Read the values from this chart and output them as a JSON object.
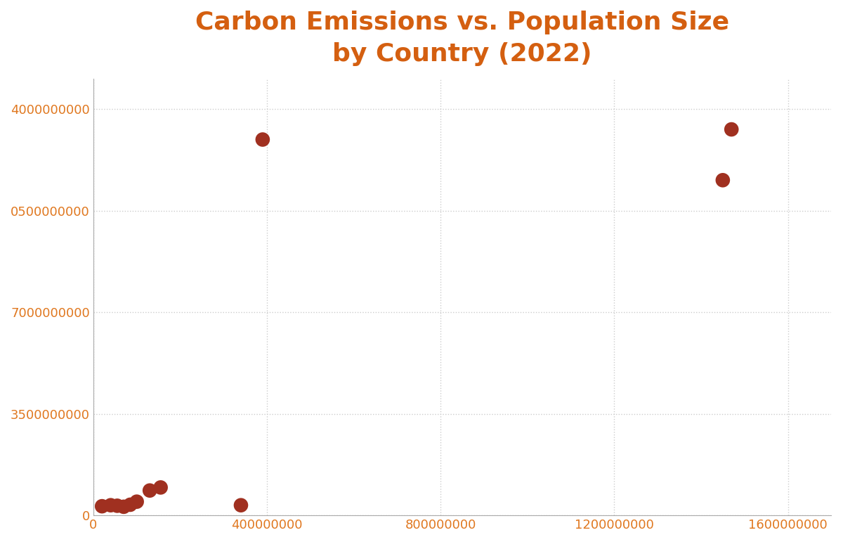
{
  "title": "Carbon Emissions vs. Population Size\nby Country (2022)",
  "title_color": "#d45f10",
  "title_fontsize": 26,
  "title_fontweight": "bold",
  "background_color": "#ffffff",
  "scatter_color": "#a03020",
  "scatter_size": 220,
  "points": [
    [
      20000000,
      90000000
    ],
    [
      40000000,
      100000000
    ],
    [
      55000000,
      95000000
    ],
    [
      70000000,
      85000000
    ],
    [
      85000000,
      105000000
    ],
    [
      100000000,
      135000000
    ],
    [
      130000000,
      245000000
    ],
    [
      155000000,
      275000000
    ],
    [
      340000000,
      100000000
    ],
    [
      390000000,
      3700000000
    ],
    [
      1450000000,
      3300000000
    ],
    [
      1470000000,
      3800000000
    ]
  ],
  "xlim": [
    0,
    1700000000
  ],
  "ylim": [
    0,
    4300000000
  ],
  "xtick_positions": [
    0,
    400000000,
    800000000,
    1200000000,
    1600000000
  ],
  "xtick_labels": [
    "0",
    "400000000",
    "800000000",
    "1200000000",
    "1600000000"
  ],
  "ytick_labels": [
    "0",
    "3500000000",
    "7000000000",
    "0500000000",
    "4000000000"
  ],
  "tick_color": "#e07820",
  "tick_fontsize": 13,
  "grid_color": "#cccccc",
  "grid_linestyle": ":",
  "grid_linewidth": 1.0,
  "spine_color": "#aaaaaa"
}
